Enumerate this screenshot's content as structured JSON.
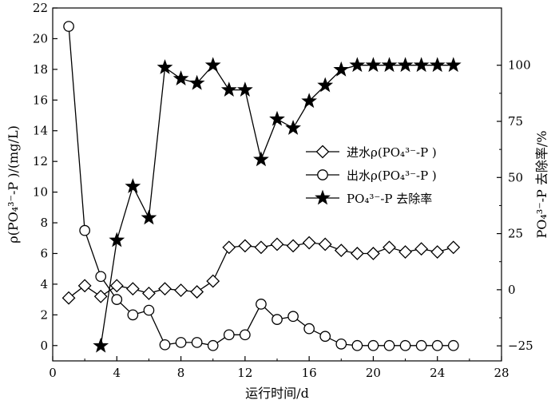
{
  "chart_data": {
    "type": "line",
    "xlabel": "运行时间/d",
    "ylabel_left": "ρ(PO₄³⁻-P )/(mg/L)",
    "ylabel_right": "PO₄³⁻-P 去除率/%",
    "xlim": [
      0,
      28
    ],
    "xticks": [
      0,
      4,
      8,
      12,
      16,
      20,
      24,
      28
    ],
    "ylim_left": [
      -1,
      22
    ],
    "yticks_left": [
      0,
      2,
      4,
      6,
      8,
      10,
      12,
      14,
      16,
      18,
      20,
      22
    ],
    "ylim_right": [
      -31.7,
      125.5
    ],
    "yticks_right": [
      -25,
      0,
      25,
      50,
      75,
      100
    ],
    "grid": false,
    "legend_position": "center-right",
    "legend": {
      "influent": "进水ρ(PO₄³⁻-P )",
      "effluent": "出水ρ(PO₄³⁻-P )",
      "removal": "PO₄³⁻-P 去除率"
    },
    "series": [
      {
        "name": "进水ρ(PO₄³⁻-P )",
        "key": "influent",
        "axis": "left",
        "marker": "diamond",
        "linestyle": "solid",
        "x": [
          1,
          2,
          3,
          4,
          5,
          6,
          7,
          8,
          9,
          10,
          11,
          12,
          13,
          14,
          15,
          16,
          17,
          18,
          19,
          20,
          21,
          22,
          23,
          24,
          25
        ],
        "values": [
          3.1,
          3.9,
          3.2,
          3.9,
          3.7,
          3.4,
          3.7,
          3.6,
          3.5,
          4.2,
          6.4,
          6.5,
          6.4,
          6.6,
          6.5,
          6.7,
          6.6,
          6.2,
          6.0,
          6.0,
          6.4,
          6.1,
          6.3,
          6.1,
          6.4
        ]
      },
      {
        "name": "出水ρ(PO₄³⁻-P )",
        "key": "effluent",
        "axis": "left",
        "marker": "circle",
        "linestyle": "solid",
        "x": [
          1,
          2,
          3,
          4,
          5,
          6,
          7,
          8,
          9,
          10,
          11,
          12,
          13,
          14,
          15,
          16,
          17,
          18,
          19,
          20,
          21,
          22,
          23,
          24,
          25
        ],
        "values": [
          20.8,
          7.5,
          4.5,
          3.0,
          2.0,
          2.3,
          0.05,
          0.2,
          0.2,
          0.0,
          0.7,
          0.7,
          2.7,
          1.7,
          1.9,
          1.1,
          0.6,
          0.1,
          0.0,
          0.0,
          0.0,
          0.0,
          0.0,
          0.0,
          0.0
        ]
      },
      {
        "name": "PO₄³⁻-P 去除率",
        "key": "removal",
        "axis": "right",
        "marker": "star",
        "linestyle": "solid",
        "x": [
          3,
          4,
          5,
          6,
          7,
          8,
          9,
          10,
          11,
          12,
          13,
          14,
          15,
          16,
          17,
          18,
          19,
          20,
          21,
          22,
          23,
          24,
          25
        ],
        "values": [
          -25,
          22,
          46,
          32,
          99,
          94,
          92,
          100,
          89,
          89,
          58,
          76,
          72,
          84,
          91,
          98,
          100,
          100,
          100,
          100,
          100,
          100,
          100
        ]
      }
    ]
  }
}
